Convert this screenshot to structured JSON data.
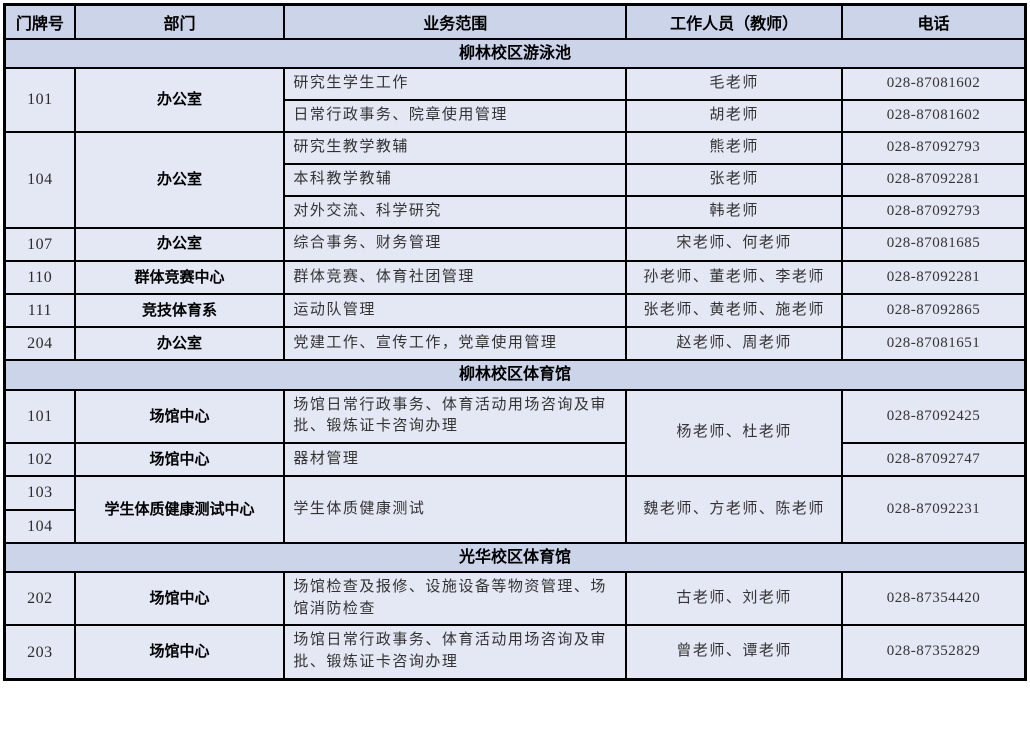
{
  "table": {
    "colors": {
      "header_bg": "#ccd4ea",
      "body_bg": "#e4e8f5",
      "border": "#000000",
      "body_text": "#333333",
      "header_text": "#000000"
    },
    "columns": [
      {
        "key": "door",
        "label": "门牌号"
      },
      {
        "key": "dept",
        "label": "部门"
      },
      {
        "key": "scope",
        "label": "业务范围"
      },
      {
        "key": "staff",
        "label": "工作人员（教师）"
      },
      {
        "key": "phone",
        "label": "电话"
      }
    ],
    "sections": [
      {
        "title": "柳林校区游泳池",
        "rows": [
          {
            "cells": [
              {
                "c": "door",
                "text": "101",
                "rowspan": 2
              },
              {
                "c": "dept",
                "text": "办公室",
                "rowspan": 2
              },
              {
                "c": "scope",
                "text": "研究生学生工作"
              },
              {
                "c": "staff",
                "text": "毛老师"
              },
              {
                "c": "phone",
                "text": "028-87081602"
              }
            ]
          },
          {
            "cells": [
              {
                "c": "scope",
                "text": "日常行政事务、院章使用管理"
              },
              {
                "c": "staff",
                "text": "胡老师"
              },
              {
                "c": "phone",
                "text": "028-87081602"
              }
            ]
          },
          {
            "cells": [
              {
                "c": "door",
                "text": "104",
                "rowspan": 3
              },
              {
                "c": "dept",
                "text": "办公室",
                "rowspan": 3
              },
              {
                "c": "scope",
                "text": "研究生教学教辅"
              },
              {
                "c": "staff",
                "text": "熊老师"
              },
              {
                "c": "phone",
                "text": "028-87092793"
              }
            ]
          },
          {
            "cells": [
              {
                "c": "scope",
                "text": "本科教学教辅"
              },
              {
                "c": "staff",
                "text": "张老师"
              },
              {
                "c": "phone",
                "text": "028-87092281"
              }
            ]
          },
          {
            "cells": [
              {
                "c": "scope",
                "text": "对外交流、科学研究"
              },
              {
                "c": "staff",
                "text": "韩老师"
              },
              {
                "c": "phone",
                "text": "028-87092793"
              }
            ]
          },
          {
            "cells": [
              {
                "c": "door",
                "text": "107"
              },
              {
                "c": "dept",
                "text": "办公室"
              },
              {
                "c": "scope",
                "text": "综合事务、财务管理"
              },
              {
                "c": "staff",
                "text": "宋老师、何老师"
              },
              {
                "c": "phone",
                "text": "028-87081685"
              }
            ]
          },
          {
            "cells": [
              {
                "c": "door",
                "text": "110"
              },
              {
                "c": "dept",
                "text": "群体竞赛中心"
              },
              {
                "c": "scope",
                "text": "群体竞赛、体育社团管理"
              },
              {
                "c": "staff",
                "text": "孙老师、董老师、李老师"
              },
              {
                "c": "phone",
                "text": "028-87092281"
              }
            ]
          },
          {
            "cells": [
              {
                "c": "door",
                "text": "111"
              },
              {
                "c": "dept",
                "text": "竞技体育系"
              },
              {
                "c": "scope",
                "text": "运动队管理"
              },
              {
                "c": "staff",
                "text": "张老师、黄老师、施老师"
              },
              {
                "c": "phone",
                "text": "028-87092865"
              }
            ]
          },
          {
            "cells": [
              {
                "c": "door",
                "text": "204"
              },
              {
                "c": "dept",
                "text": "办公室"
              },
              {
                "c": "scope",
                "text": "党建工作、宣传工作，党章使用管理"
              },
              {
                "c": "staff",
                "text": "赵老师、周老师"
              },
              {
                "c": "phone",
                "text": "028-87081651"
              }
            ]
          }
        ]
      },
      {
        "title": "柳林校区体育馆",
        "rows": [
          {
            "cells": [
              {
                "c": "door",
                "text": "101"
              },
              {
                "c": "dept",
                "text": "场馆中心"
              },
              {
                "c": "scope",
                "text": "场馆日常行政事务、体育活动用场咨询及审批、锻炼证卡咨询办理"
              },
              {
                "c": "staff",
                "text": "杨老师、杜老师",
                "rowspan": 2
              },
              {
                "c": "phone",
                "text": "028-87092425"
              }
            ]
          },
          {
            "cells": [
              {
                "c": "door",
                "text": "102"
              },
              {
                "c": "dept",
                "text": "场馆中心"
              },
              {
                "c": "scope",
                "text": "器材管理"
              },
              {
                "c": "phone",
                "text": "028-87092747"
              }
            ]
          },
          {
            "cells": [
              {
                "c": "door",
                "text": "103"
              },
              {
                "c": "dept",
                "text": "学生体质健康测试中心",
                "rowspan": 2
              },
              {
                "c": "scope",
                "text": "学生体质健康测试",
                "rowspan": 2
              },
              {
                "c": "staff",
                "text": "魏老师、方老师、陈老师",
                "rowspan": 2
              },
              {
                "c": "phone",
                "text": "028-87092231",
                "rowspan": 2
              }
            ]
          },
          {
            "cells": [
              {
                "c": "door",
                "text": "104"
              }
            ]
          }
        ]
      },
      {
        "title": "光华校区体育馆",
        "rows": [
          {
            "cells": [
              {
                "c": "door",
                "text": "202"
              },
              {
                "c": "dept",
                "text": "场馆中心"
              },
              {
                "c": "scope",
                "text": "场馆检查及报修、设施设备等物资管理、场馆消防检查"
              },
              {
                "c": "staff",
                "text": "古老师、刘老师"
              },
              {
                "c": "phone",
                "text": "028-87354420"
              }
            ]
          },
          {
            "cells": [
              {
                "c": "door",
                "text": "203"
              },
              {
                "c": "dept",
                "text": "场馆中心"
              },
              {
                "c": "scope",
                "text": "场馆日常行政事务、体育活动用场咨询及审批、锻炼证卡咨询办理"
              },
              {
                "c": "staff",
                "text": "曾老师、谭老师"
              },
              {
                "c": "phone",
                "text": "028-87352829"
              }
            ]
          }
        ]
      }
    ]
  }
}
